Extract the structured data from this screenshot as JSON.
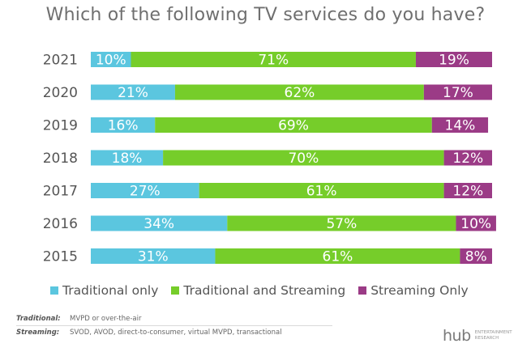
{
  "chart_data": {
    "type": "bar",
    "orientation": "horizontal",
    "stacked": true,
    "title": "Which of the following TV services do you have?",
    "categories": [
      "2021",
      "2020",
      "2019",
      "2018",
      "2017",
      "2016",
      "2015"
    ],
    "series": [
      {
        "name": "Traditional only",
        "color": "#5bc6df",
        "values": [
          10,
          21,
          16,
          18,
          27,
          34,
          31
        ]
      },
      {
        "name": "Traditional and Streaming",
        "color": "#76cd2a",
        "values": [
          71,
          62,
          69,
          70,
          61,
          57,
          61
        ]
      },
      {
        "name": "Streaming Only",
        "color": "#9b3b86",
        "values": [
          19,
          17,
          14,
          12,
          12,
          10,
          8
        ]
      }
    ],
    "value_suffix": "%",
    "xlim": [
      0,
      100
    ],
    "legend_position": "bottom"
  },
  "notes": [
    {
      "term": "Traditional:",
      "definition": "MVPD or over-the-air"
    },
    {
      "term": "Streaming:",
      "definition": "SVOD, AVOD, direct-to-consumer, virtual MVPD, transactional"
    }
  ],
  "logo": {
    "mark": "hub",
    "tagline": "ENTERTAINMENT RESEARCH"
  }
}
